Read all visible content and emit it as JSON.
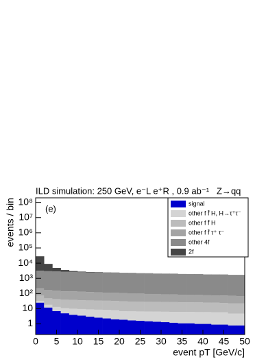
{
  "chart_data": {
    "type": "stacked-histogram",
    "title": "ILD simulation: 250 GeV, e⁻L e⁺R , 0.9 ab⁻¹",
    "title_right": "Z→qq",
    "annotation": "(e)",
    "x_label": "event pT [GeV/c]",
    "y_label": "events / bin",
    "log_y": true,
    "legend": "top-right",
    "bins": [
      0,
      2,
      4,
      6,
      8,
      10,
      12,
      14,
      16,
      18,
      20,
      22,
      24,
      26,
      28,
      30,
      32,
      34,
      36,
      38,
      40,
      42,
      44,
      46,
      48,
      50
    ],
    "series": [
      {
        "name": "signal",
        "color": "#0000cc",
        "values": [
          25,
          12,
          7,
          5,
          4,
          3.5,
          3,
          2.6,
          2.3,
          2,
          1.9,
          1.7,
          1.6,
          1.5,
          1.4,
          1.3,
          1.2,
          1.1,
          1.1,
          1,
          1,
          0.9,
          0.9,
          0.8,
          0.8
        ]
      },
      {
        "name": "other f f̄ H, H→τ⁺τ⁻",
        "color": "#d4d4d4",
        "values": [
          8,
          6,
          6,
          6,
          6,
          6,
          6,
          6,
          6,
          6,
          5,
          5,
          5,
          5,
          5,
          5,
          5,
          5,
          5,
          5,
          5,
          5,
          5,
          4,
          4
        ]
      },
      {
        "name": "other f f̄ H",
        "color": "#bcbcbc",
        "values": [
          40,
          30,
          30,
          28,
          28,
          26,
          26,
          25,
          25,
          24,
          24,
          23,
          23,
          22,
          22,
          21,
          21,
          20,
          20,
          20,
          19,
          19,
          18,
          18,
          18
        ]
      },
      {
        "name": "other f f̄ τ⁺ τ⁻",
        "color": "#a4a4a4",
        "values": [
          150,
          120,
          110,
          100,
          100,
          95,
          90,
          85,
          80,
          80,
          75,
          70,
          70,
          65,
          65,
          60,
          60,
          58,
          55,
          55,
          52,
          50,
          50,
          48,
          45
        ]
      },
      {
        "name": "other 4f",
        "color": "#8a8a8a",
        "values": [
          3000,
          2800,
          2700,
          2600,
          2500,
          2400,
          2300,
          2300,
          2200,
          2200,
          2100,
          2100,
          2000,
          2000,
          1900,
          1900,
          1900,
          1800,
          1800,
          1800,
          1700,
          1700,
          1700,
          1600,
          1600
        ]
      },
      {
        "name": "2f",
        "color": "#454545",
        "values": [
          25000,
          6000,
          2000,
          800,
          400,
          250,
          180,
          150,
          120,
          100,
          90,
          80,
          70,
          65,
          60,
          55,
          50,
          45,
          40,
          38,
          35,
          32,
          30,
          28,
          25
        ]
      }
    ],
    "xlim": [
      0,
      50
    ],
    "xticks": [
      0,
      5,
      10,
      15,
      20,
      25,
      30,
      35,
      40,
      45,
      50
    ],
    "ylim": [
      0.2,
      200000000
    ],
    "yticks": [
      1,
      10,
      {
        "value": 100,
        "label": "10²"
      },
      {
        "value": 1000,
        "label": "10³"
      },
      {
        "value": 10000,
        "label": "10⁴"
      },
      {
        "value": 100000,
        "label": "10⁵"
      },
      {
        "value": 1000000,
        "label": "10⁶"
      },
      {
        "value": 10000000,
        "label": "10⁷"
      },
      {
        "value": 100000000,
        "label": "10⁸"
      }
    ]
  }
}
